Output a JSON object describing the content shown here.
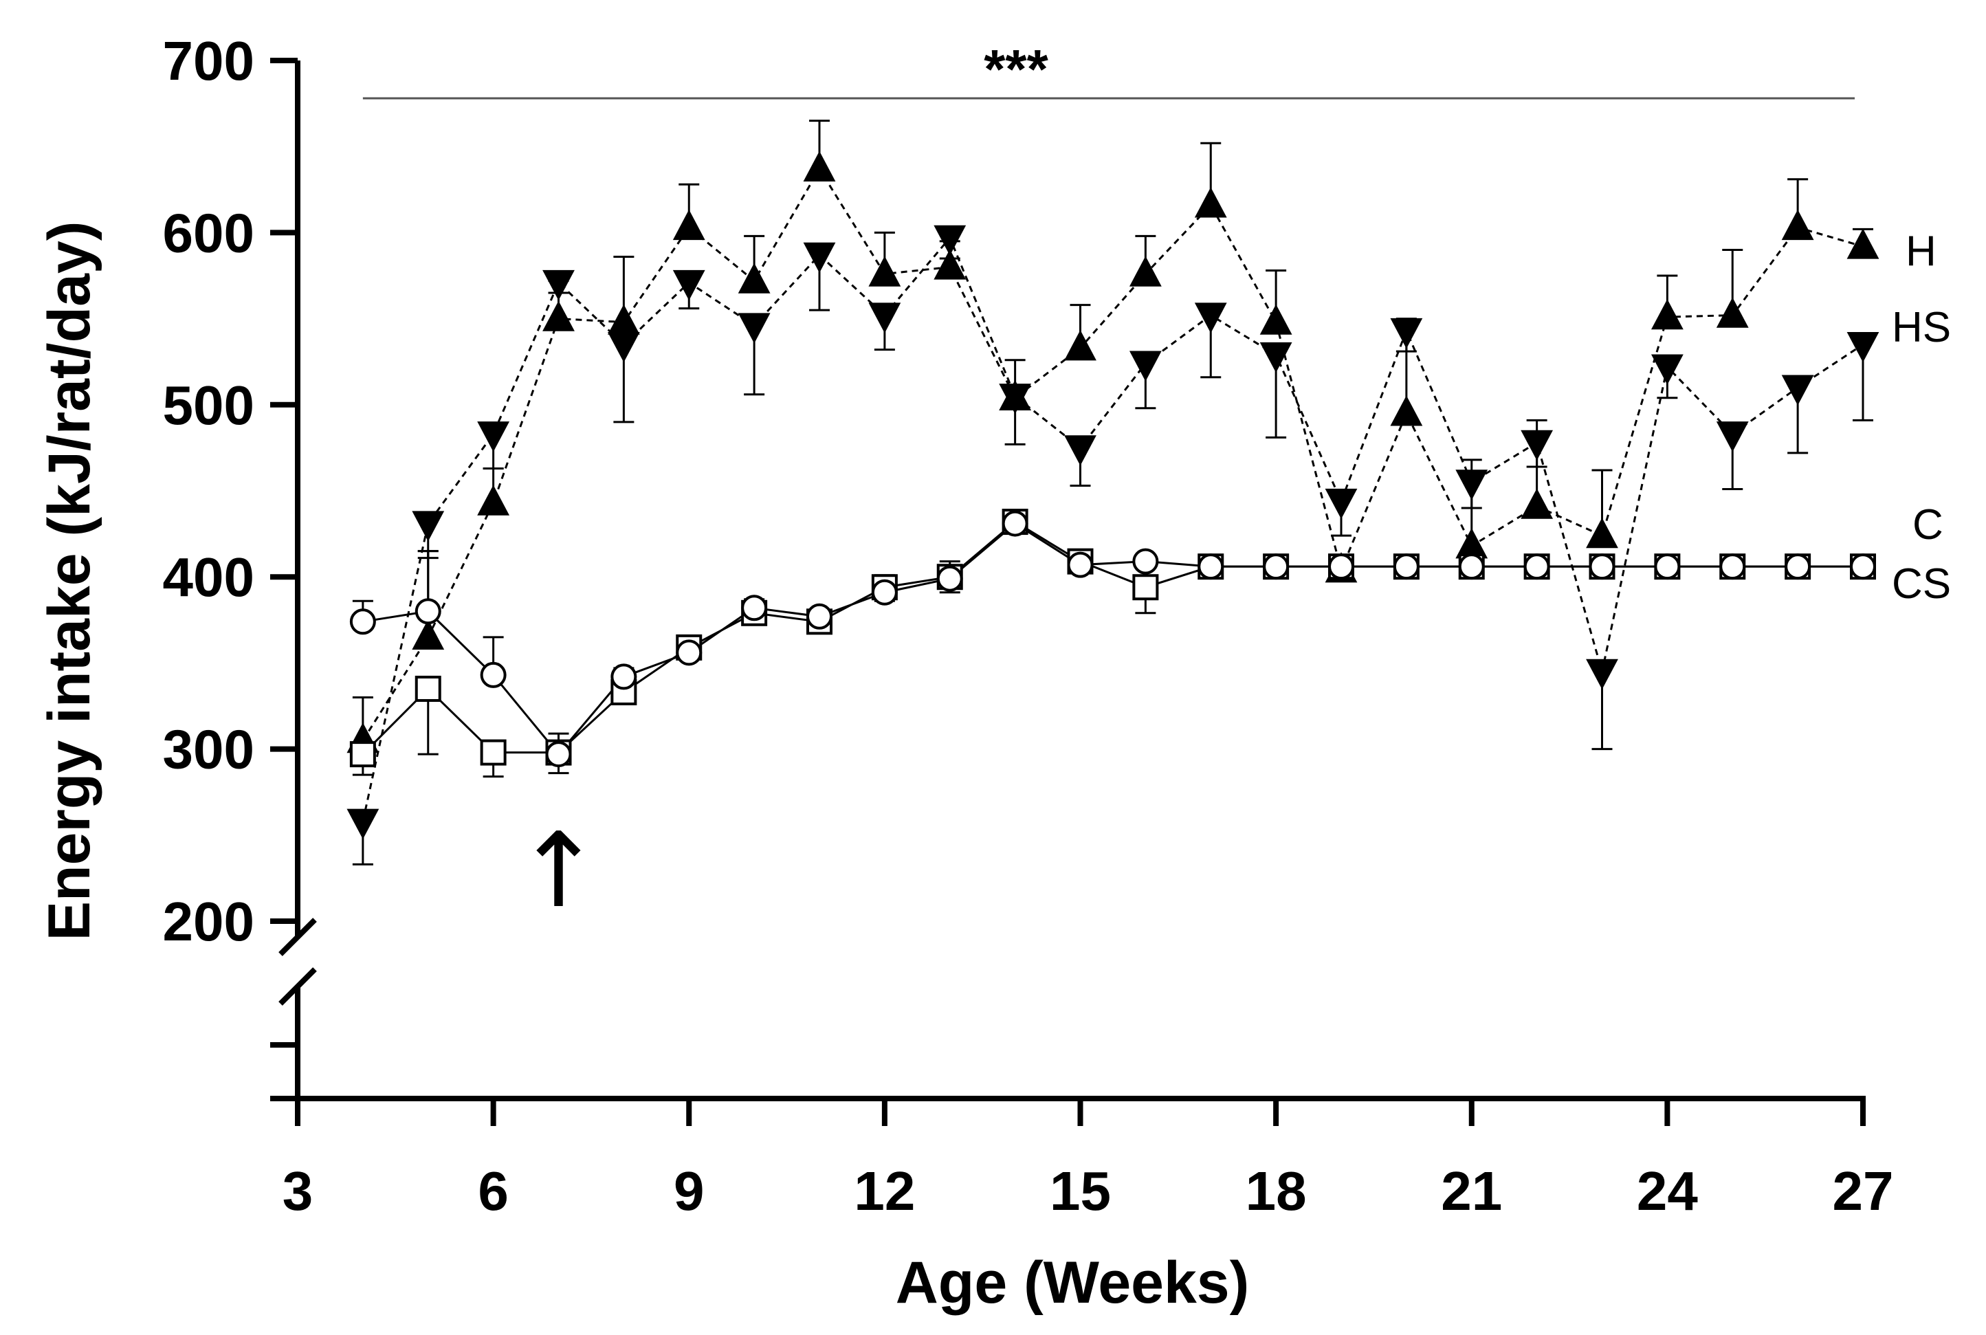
{
  "chart_data": {
    "type": "line",
    "title": "",
    "xlabel": "Age (Weeks)",
    "ylabel": "Energy intake (kJ/rat/day)",
    "xlim": [
      3,
      27
    ],
    "ylim": [
      200,
      700
    ],
    "y_axis_break": "below 200",
    "x_ticks": [
      "3",
      "6",
      "9",
      "12",
      "15",
      "18",
      "21",
      "24",
      "27"
    ],
    "y_ticks": [
      "200",
      "300",
      "400",
      "500",
      "600",
      "700"
    ],
    "significance_label": "***",
    "annotation": "↑",
    "annotation_x": 7,
    "x": [
      4,
      5,
      6,
      7,
      8,
      9,
      10,
      11,
      12,
      13,
      14,
      15,
      16,
      17,
      18,
      19,
      20,
      21,
      22,
      23,
      24,
      25,
      26,
      27
    ],
    "series": [
      {
        "name": "H",
        "marker": "triangle-up-filled",
        "line": "dashed",
        "values": [
          305,
          365,
          443,
          550,
          548,
          603,
          572,
          637,
          576,
          580,
          504,
          533,
          576,
          616,
          548,
          404,
          495,
          418,
          441,
          424,
          551,
          552,
          603,
          592
        ],
        "errors": [
          25,
          50,
          20,
          22,
          38,
          25,
          26,
          28,
          24,
          15,
          22,
          25,
          22,
          36,
          30,
          8,
          55,
          50,
          50,
          38,
          24,
          38,
          28,
          10
        ]
      },
      {
        "name": "HS",
        "marker": "triangle-down-filled",
        "line": "dashed",
        "values": [
          258,
          431,
          483,
          571,
          535,
          571,
          546,
          587,
          552,
          597,
          505,
          475,
          524,
          552,
          529,
          444,
          543,
          455,
          478,
          345,
          522,
          483,
          510,
          535
        ],
        "errors": [
          25,
          20,
          20,
          6,
          45,
          15,
          40,
          32,
          20,
          12,
          28,
          22,
          26,
          36,
          48,
          20,
          12,
          15,
          14,
          45,
          18,
          32,
          38,
          44
        ]
      },
      {
        "name": "C",
        "marker": "circle-open",
        "line": "solid",
        "values": [
          374,
          380,
          343,
          297,
          342,
          356,
          382,
          377,
          391,
          399,
          431,
          407,
          409,
          406,
          406,
          406,
          406,
          406,
          406,
          406,
          406,
          406,
          406,
          406
        ],
        "errors": [
          12,
          35,
          22,
          12,
          5,
          6,
          5,
          4,
          10,
          10,
          5,
          5,
          4,
          0,
          0,
          0,
          0,
          0,
          0,
          0,
          0,
          0,
          0,
          0
        ]
      },
      {
        "name": "CS",
        "marker": "square-open",
        "line": "solid",
        "values": [
          297,
          335,
          298,
          298,
          333,
          359,
          379,
          374,
          394,
          400,
          432,
          409,
          394,
          406,
          406,
          406,
          406,
          406,
          406,
          406,
          406,
          406,
          406,
          406
        ],
        "errors": [
          12,
          38,
          14,
          12,
          6,
          6,
          5,
          6,
          8,
          9,
          5,
          5,
          15,
          0,
          0,
          0,
          0,
          0,
          0,
          0,
          0,
          0,
          0,
          0
        ]
      }
    ],
    "end_labels": [
      "H",
      "HS",
      "C",
      "CS"
    ]
  }
}
